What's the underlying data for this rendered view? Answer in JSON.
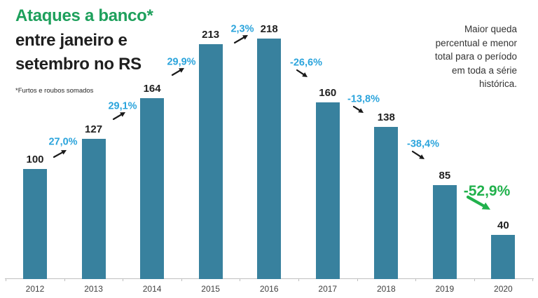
{
  "header": {
    "title_green": "Ataques a banco*",
    "title_line2": "entre janeiro e",
    "title_line3": "setembro no RS",
    "footnote": "*Furtos e roubos somados"
  },
  "side_note": "Maior queda percentual e menor total para o período em toda a série histórica.",
  "colors": {
    "bar": "#38819E",
    "title_green": "#1EA05C",
    "pct_blue": "#2BA4DC",
    "highlight_green": "#21B14C",
    "arrow_black": "#1a1a1a",
    "axis_gray": "#BFBFBF",
    "text_dark": "#1f1f1f",
    "text_gray": "#3f3f3f"
  },
  "chart_data": {
    "type": "bar",
    "title": "Ataques a banco* entre janeiro e setembro no RS",
    "categories": [
      "2012",
      "2013",
      "2014",
      "2015",
      "2016",
      "2017",
      "2018",
      "2019",
      "2020"
    ],
    "values": [
      100,
      127,
      164,
      213,
      218,
      160,
      138,
      85,
      40
    ],
    "xlabel": "",
    "ylabel": "",
    "ylim": [
      0,
      230
    ],
    "grid": false,
    "value_labels_shown": true,
    "legend": "none",
    "annotations": [
      {
        "label": "27,0%",
        "between": [
          "2012",
          "2013"
        ],
        "direction": "up",
        "emphasis": false
      },
      {
        "label": "29,1%",
        "between": [
          "2013",
          "2014"
        ],
        "direction": "up",
        "emphasis": false
      },
      {
        "label": "29,9%",
        "between": [
          "2014",
          "2015"
        ],
        "direction": "up",
        "emphasis": false
      },
      {
        "label": "2,3%",
        "between": [
          "2015",
          "2016"
        ],
        "direction": "up",
        "emphasis": false
      },
      {
        "label": "-26,6%",
        "between": [
          "2016",
          "2017"
        ],
        "direction": "down",
        "emphasis": false
      },
      {
        "label": "-13,8%",
        "between": [
          "2017",
          "2018"
        ],
        "direction": "down",
        "emphasis": false
      },
      {
        "label": "-38,4%",
        "between": [
          "2018",
          "2019"
        ],
        "direction": "down",
        "emphasis": false
      },
      {
        "label": "-52,9%",
        "between": [
          "2019",
          "2020"
        ],
        "direction": "down",
        "emphasis": true
      }
    ]
  }
}
